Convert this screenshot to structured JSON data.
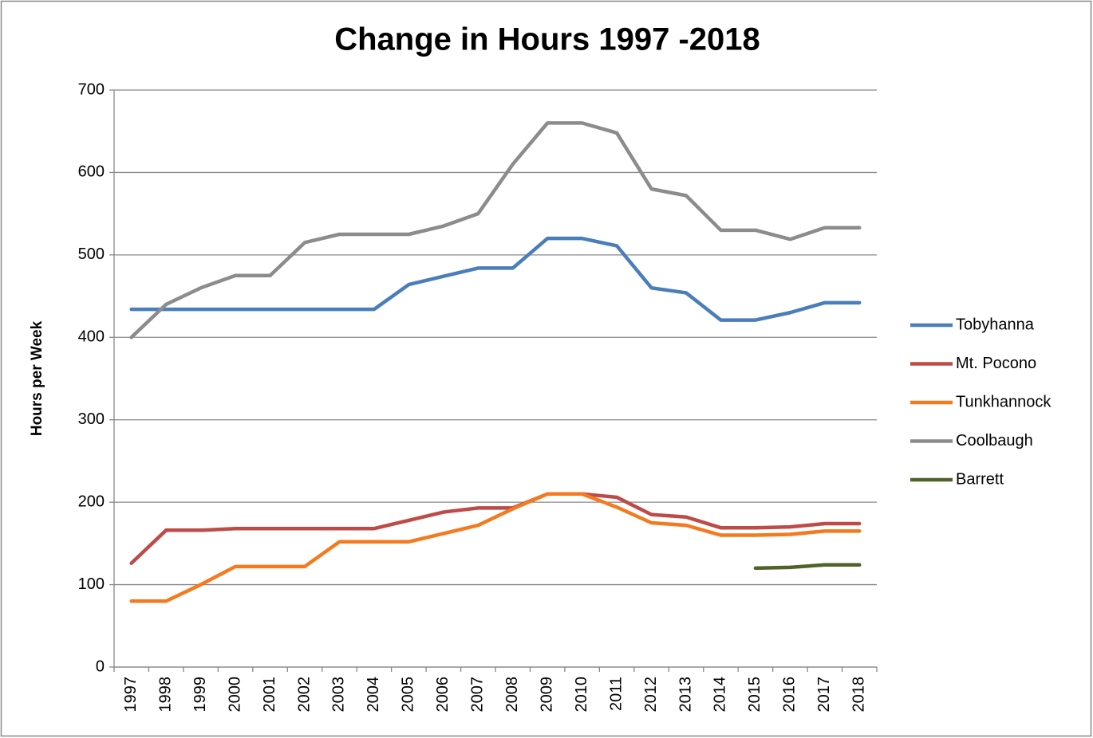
{
  "chart_data": {
    "type": "line",
    "title": "Change in Hours 1997 -2018",
    "y_label": "Hours per Week",
    "categories": [
      "1997",
      "1998",
      "1999",
      "2000",
      "2001",
      "2002",
      "2003",
      "2004",
      "2005",
      "2006",
      "2007",
      "2008",
      "2009",
      "2010",
      "2011",
      "2012",
      "2013",
      "2014",
      "2015",
      "2016",
      "2017",
      "2018"
    ],
    "series": [
      {
        "name": "Tobyhanna",
        "color": "#4a7ebb",
        "values": [
          434,
          434,
          434,
          434,
          434,
          434,
          434,
          434,
          464,
          474,
          484,
          484,
          520,
          520,
          511,
          460,
          454,
          421,
          421,
          430,
          442,
          442
        ]
      },
      {
        "name": "Mt. Pocono",
        "color": "#be4b48",
        "values": [
          126,
          166,
          166,
          168,
          168,
          168,
          168,
          168,
          178,
          188,
          193,
          193,
          210,
          210,
          206,
          185,
          182,
          169,
          169,
          170,
          174,
          174
        ]
      },
      {
        "name": "Tunkhannock",
        "color": "#f47a1f",
        "values": [
          80,
          80,
          100,
          122,
          122,
          122,
          152,
          152,
          152,
          162,
          172,
          192,
          210,
          210,
          194,
          175,
          172,
          160,
          160,
          161,
          165,
          165
        ]
      },
      {
        "name": "Coolbaugh",
        "color": "#8c8c8c",
        "values": [
          400,
          440,
          460,
          475,
          475,
          515,
          525,
          525,
          525,
          535,
          550,
          610,
          660,
          660,
          648,
          580,
          572,
          530,
          530,
          519,
          533,
          533
        ]
      },
      {
        "name": "Barrett",
        "color": "#4f6228",
        "values": [
          null,
          null,
          null,
          null,
          null,
          null,
          null,
          null,
          null,
          null,
          null,
          null,
          null,
          null,
          null,
          null,
          null,
          null,
          120,
          121,
          124,
          124
        ]
      }
    ],
    "ylim": [
      0,
      700
    ],
    "yticks": [
      0,
      100,
      200,
      300,
      400,
      500,
      600,
      700
    ],
    "grid": true,
    "legend": "right"
  }
}
